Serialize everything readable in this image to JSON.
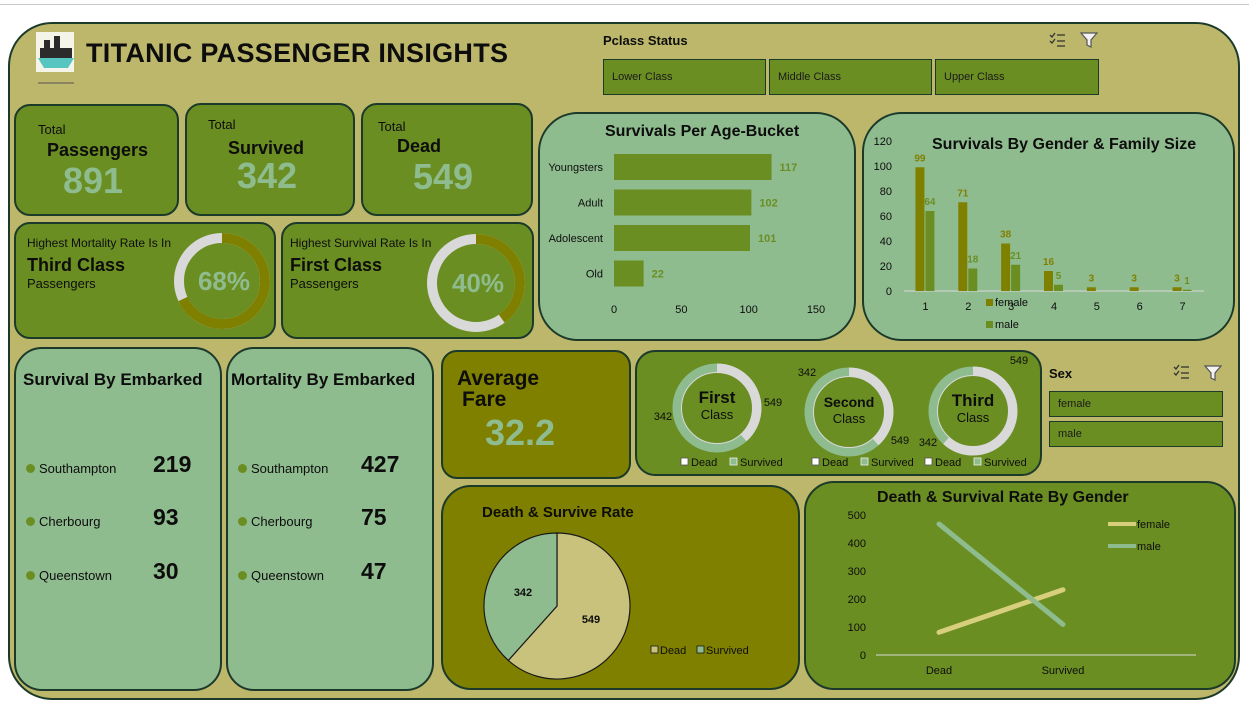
{
  "header": {
    "title": "TITANIC PASSENGER INSIGHTS",
    "logo_icon": "ship-icon"
  },
  "pclass_slicer": {
    "title": "Pclass Status",
    "options": [
      "Lower Class",
      "Middle Class",
      "Upper Class"
    ],
    "multiselect_icon": "multiselect-icon",
    "filter_icon": "filter-icon"
  },
  "sex_slicer": {
    "title": "Sex",
    "options": [
      "female",
      "male"
    ],
    "multiselect_icon": "multiselect-icon",
    "filter_icon": "filter-icon"
  },
  "kpis": {
    "passengers": {
      "small": "Total",
      "label": "Passengers",
      "value": "891"
    },
    "survived": {
      "small": "Total",
      "label": "Survived",
      "value": "342"
    },
    "dead": {
      "small": "Total",
      "label": "Dead",
      "value": "549"
    }
  },
  "mortality_card": {
    "line1": "Highest Mortality Rate Is In",
    "line2": "Third Class",
    "line3": "Passengers",
    "value_label": "68%",
    "fraction": 0.68
  },
  "survival_card": {
    "line1": "Highest Survival Rate Is In",
    "line2": "First Class",
    "line3": "Passengers",
    "value_label": "40%",
    "fraction": 0.4
  },
  "survival_embarked": {
    "title": "Survival By Embarked",
    "items": [
      {
        "label": "Southampton",
        "value": "219"
      },
      {
        "label": "Cherbourg",
        "value": "93"
      },
      {
        "label": "Queenstown",
        "value": "30"
      }
    ]
  },
  "mortality_embarked": {
    "title": "Mortality By Embarked",
    "items": [
      {
        "label": "Southampton",
        "value": "427"
      },
      {
        "label": "Cherbourg",
        "value": "75"
      },
      {
        "label": "Queenstown",
        "value": "47"
      }
    ]
  },
  "avg_fare": {
    "line1": "Average",
    "line2": "Fare",
    "value": "32.2"
  },
  "colors": {
    "dark_green": "#6b8e23",
    "light_green": "#8fbc8f",
    "olive": "#808000",
    "khaki": "#bdb76b",
    "tan": "#c8c27c",
    "border": "#1c3a2a",
    "grey_ring": "#d9d9d9"
  },
  "chart_data": [
    {
      "id": "age_bucket",
      "type": "bar",
      "orientation": "horizontal",
      "title": "Survivals Per Age-Bucket",
      "categories": [
        "Youngsters",
        "Adult",
        "Adolescent",
        "Old"
      ],
      "values": [
        117,
        102,
        101,
        22
      ],
      "xlim": [
        0,
        150
      ],
      "xticks": [
        "0",
        "50",
        "100",
        "150"
      ],
      "color": "#6b8e23"
    },
    {
      "id": "gender_family",
      "type": "bar",
      "title": "Survivals By Gender & Family Size",
      "categories": [
        "1",
        "2",
        "3",
        "4",
        "5",
        "6",
        "7"
      ],
      "series": [
        {
          "name": "female",
          "values": [
            99,
            71,
            38,
            16,
            3,
            3,
            3
          ],
          "color": "#808000"
        },
        {
          "name": "male",
          "values": [
            64,
            18,
            21,
            5,
            null,
            null,
            1
          ],
          "color": "#6b8e23"
        }
      ],
      "ylim": [
        0,
        120
      ],
      "yticks": [
        "0",
        "20",
        "40",
        "60",
        "80",
        "100",
        "120"
      ]
    },
    {
      "id": "class_donuts",
      "type": "pie",
      "legend": [
        "Dead",
        "Survived"
      ],
      "items": [
        {
          "line1": "First",
          "line2": "Class",
          "dead": 342,
          "survived": 549,
          "label_dead": "342",
          "label_survived": "549"
        },
        {
          "line1": "Second",
          "line2": "Class",
          "dead": 342,
          "survived": 549,
          "label_dead": "342",
          "label_survived": "549"
        },
        {
          "line1": "Third",
          "line2": "Class",
          "dead": 549,
          "survived": 342,
          "label_dead": "549",
          "label_survived": "342"
        }
      ]
    },
    {
      "id": "death_survive_pie",
      "type": "pie",
      "title": "Death & Survive Rate",
      "slices": [
        {
          "name": "Dead",
          "value": 549,
          "label": "549",
          "color": "#c8c27c"
        },
        {
          "name": "Survived",
          "value": 342,
          "label": "342",
          "color": "#8fbc8f"
        }
      ],
      "legend": [
        "Dead",
        "Survived"
      ]
    },
    {
      "id": "gender_rate",
      "type": "line",
      "title": "Death & Survival Rate By Gender",
      "categories": [
        "Dead",
        "Survived"
      ],
      "series": [
        {
          "name": "female",
          "values": [
            81,
            233
          ],
          "color": "#d8cf7c"
        },
        {
          "name": "male",
          "values": [
            468,
            109
          ],
          "color": "#8fbc8f"
        }
      ],
      "ylim": [
        0,
        500
      ],
      "yticks": [
        "0",
        "100",
        "200",
        "300",
        "400",
        "500"
      ]
    }
  ]
}
